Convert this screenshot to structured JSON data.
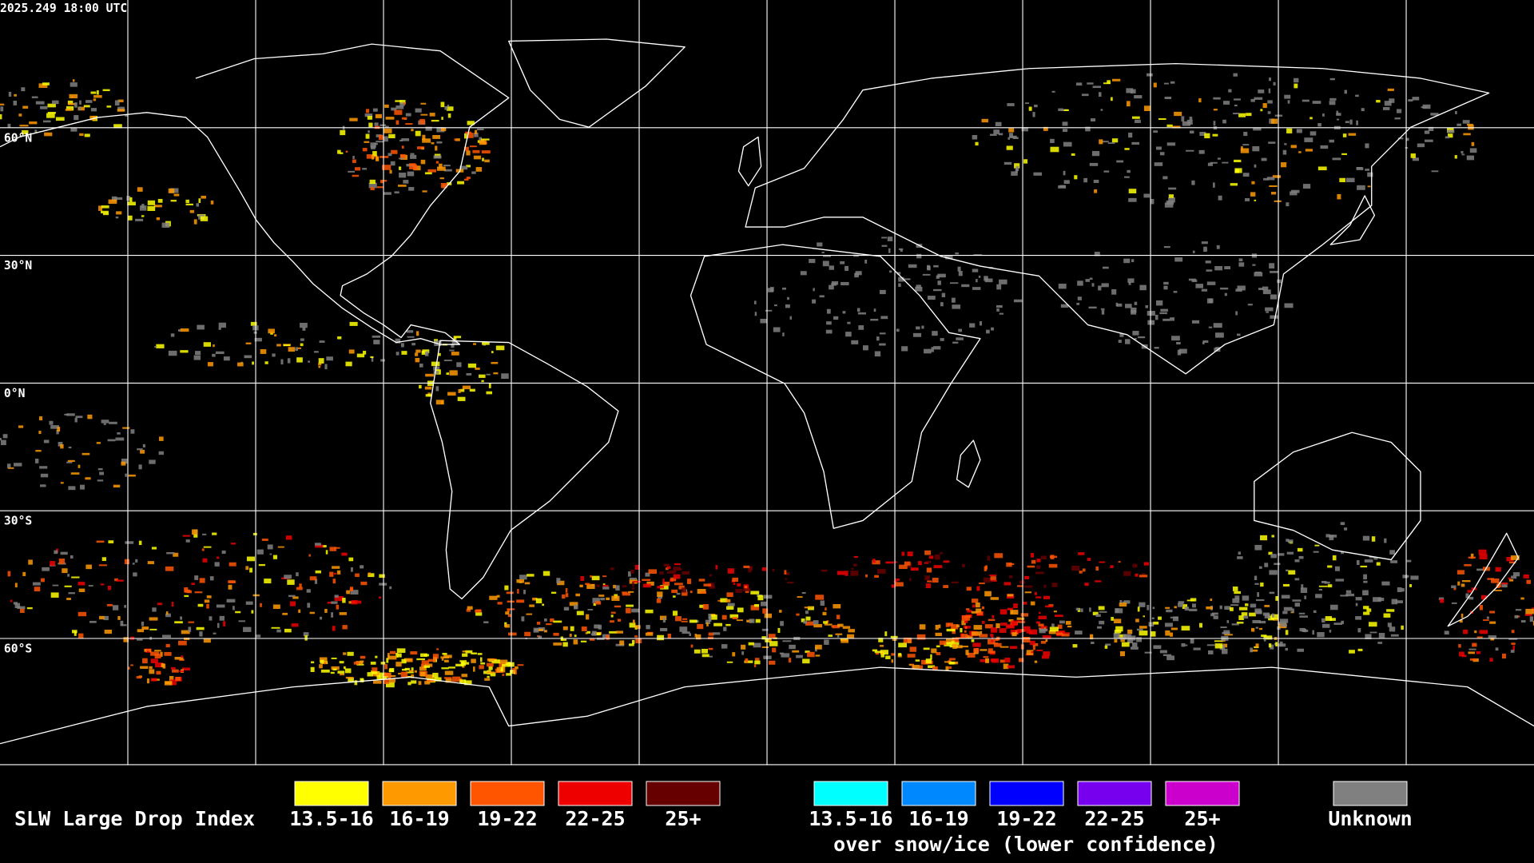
{
  "header": {
    "timestamp": "2025.249 18:00 UTC"
  },
  "map": {
    "latitude_labels": [
      "60°N",
      "30°N",
      "0°N",
      "30°S",
      "60°S"
    ]
  },
  "legend": {
    "title": "SLW Large Drop Index",
    "primary": [
      {
        "label": "13.5-16",
        "color": "#ffff00"
      },
      {
        "label": "16-19",
        "color": "#ff9900"
      },
      {
        "label": "19-22",
        "color": "#ff5500"
      },
      {
        "label": "22-25",
        "color": "#ee0000"
      },
      {
        "label": "25+",
        "color": "#660000"
      }
    ],
    "snow_ice": {
      "items": [
        {
          "label": "13.5-16",
          "color": "#00ffff"
        },
        {
          "label": "16-19",
          "color": "#0088ff"
        },
        {
          "label": "19-22",
          "color": "#0000ff"
        },
        {
          "label": "22-25",
          "color": "#7700ee"
        },
        {
          "label": "25+",
          "color": "#cc00cc"
        }
      ],
      "caption": "over snow/ice (lower confidence)"
    },
    "unknown": {
      "label": "Unknown",
      "color": "#808080"
    }
  }
}
